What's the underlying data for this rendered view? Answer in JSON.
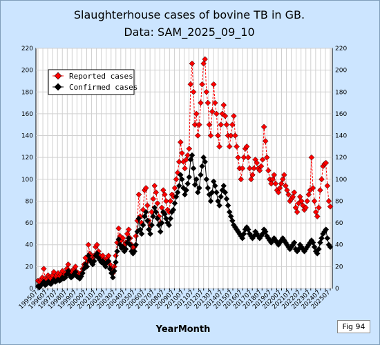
{
  "chart_data": {
    "type": "line",
    "title": "Slaughterhouse cases of bovine TB in GB.",
    "subtitle": "Data: SAM_2025_09_10",
    "xlabel": "YearMonth",
    "ylabel": "",
    "ylim": [
      0,
      220
    ],
    "yticks": [
      0,
      20,
      40,
      60,
      80,
      100,
      120,
      140,
      160,
      180,
      200,
      220
    ],
    "x_tick_labels": [
      "199507",
      "199601",
      "199607",
      "199701",
      "199707",
      "199801",
      "199807",
      "199901",
      "199907",
      "200001",
      "200007",
      "200101",
      "200107",
      "200201",
      "200207",
      "200301",
      "200307",
      "200401",
      "200407",
      "200501",
      "200507",
      "200601",
      "200607",
      "200701",
      "200707",
      "200801",
      "200807",
      "200901",
      "200907",
      "201001",
      "201007",
      "201101",
      "201107",
      "201201",
      "201207",
      "201301",
      "201307",
      "201401",
      "201407",
      "201501",
      "201507",
      "201601",
      "201607",
      "201701",
      "201707",
      "201801",
      "201807",
      "201901",
      "201907",
      "202001",
      "202007",
      "202101",
      "202107",
      "202201",
      "202207",
      "202301",
      "202307",
      "202401",
      "202407",
      "202501",
      "202507"
    ],
    "grid": true,
    "legend_position": "top-left",
    "series": [
      {
        "name": "Reported cases",
        "color": "#ff0000",
        "values": [
          7,
          6,
          8,
          10,
          18,
          9,
          8,
          12,
          10,
          9,
          12,
          15,
          10,
          12,
          14,
          11,
          13,
          16,
          12,
          14,
          18,
          22,
          16,
          14,
          16,
          18,
          20,
          15,
          14,
          12,
          14,
          18,
          22,
          28,
          24,
          40,
          32,
          30,
          26,
          30,
          38,
          40,
          34,
          30,
          28,
          30,
          26,
          24,
          28,
          30,
          22,
          18,
          14,
          20,
          30,
          42,
          55,
          48,
          44,
          46,
          40,
          42,
          50,
          54,
          46,
          40,
          36,
          38,
          48,
          62,
          86,
          66,
          60,
          72,
          90,
          92,
          76,
          62,
          58,
          70,
          82,
          94,
          88,
          78,
          66,
          60,
          74,
          90,
          86,
          80,
          72,
          70,
          80,
          86,
          84,
          92,
          100,
          106,
          116,
          134,
          124,
          116,
          110,
          118,
          122,
          128,
          187,
          206,
          180,
          150,
          160,
          140,
          150,
          170,
          187,
          206,
          210,
          180,
          170,
          150,
          140,
          162,
          187,
          170,
          160,
          140,
          130,
          150,
          160,
          168,
          158,
          150,
          140,
          130,
          140,
          150,
          158,
          140,
          130,
          120,
          110,
          100,
          110,
          120,
          128,
          130,
          120,
          110,
          100,
          104,
          110,
          118,
          115,
          110,
          108,
          112,
          118,
          148,
          135,
          120,
          108,
          100,
          96,
          100,
          104,
          96,
          90,
          88,
          92,
          96,
          100,
          104,
          94,
          90,
          86,
          80,
          82,
          84,
          88,
          74,
          70,
          78,
          84,
          80,
          76,
          72,
          74,
          80,
          86,
          90,
          120,
          92,
          80,
          70,
          66,
          74,
          90,
          100,
          112,
          114,
          115,
          94,
          80,
          75
        ]
      },
      {
        "name": "Confirmed cases",
        "color": "#000000",
        "values": [
          2,
          1,
          3,
          4,
          6,
          3,
          4,
          6,
          5,
          4,
          6,
          8,
          6,
          7,
          8,
          7,
          8,
          10,
          9,
          10,
          13,
          16,
          12,
          10,
          11,
          13,
          15,
          11,
          10,
          9,
          11,
          14,
          18,
          22,
          20,
          30,
          26,
          24,
          22,
          25,
          30,
          32,
          28,
          26,
          24,
          25,
          22,
          20,
          24,
          25,
          18,
          14,
          10,
          16,
          24,
          34,
          45,
          40,
          37,
          38,
          34,
          36,
          42,
          46,
          40,
          34,
          32,
          34,
          40,
          52,
          64,
          54,
          50,
          58,
          66,
          70,
          62,
          54,
          50,
          58,
          66,
          74,
          70,
          64,
          58,
          52,
          60,
          70,
          68,
          64,
          60,
          58,
          64,
          70,
          72,
          78,
          84,
          88,
          94,
          104,
          100,
          92,
          86,
          90,
          96,
          102,
          118,
          122,
          110,
          95,
          100,
          88,
          92,
          104,
          112,
          120,
          116,
          100,
          92,
          86,
          80,
          88,
          98,
          94,
          88,
          80,
          76,
          84,
          90,
          94,
          88,
          82,
          76,
          70,
          66,
          62,
          58,
          56,
          54,
          52,
          50,
          48,
          46,
          50,
          54,
          56,
          54,
          50,
          48,
          46,
          48,
          52,
          50,
          48,
          46,
          48,
          50,
          54,
          52,
          48,
          46,
          44,
          42,
          44,
          46,
          44,
          42,
          40,
          42,
          44,
          46,
          44,
          42,
          40,
          38,
          36,
          38,
          40,
          42,
          36,
          34,
          36,
          40,
          38,
          36,
          34,
          36,
          38,
          40,
          42,
          44,
          42,
          38,
          34,
          32,
          36,
          42,
          46,
          50,
          52,
          54,
          46,
          40,
          38
        ]
      }
    ]
  },
  "badge": {
    "label": "Fig 94"
  }
}
